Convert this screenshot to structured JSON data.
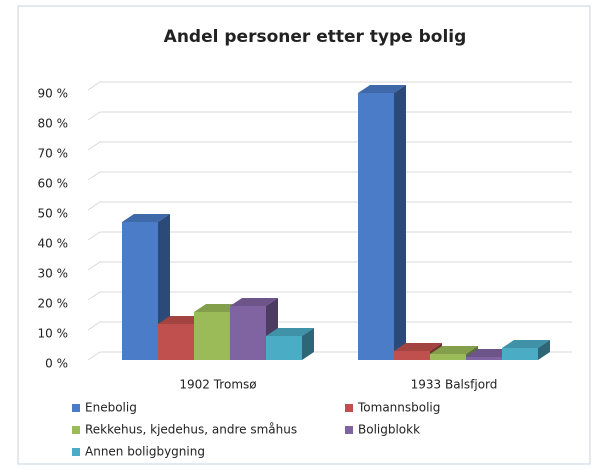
{
  "chart_data": {
    "type": "bar3d",
    "title": "Andel personer etter type bolig",
    "categories": [
      "1902 Tromsø",
      "1933 Balsfjord"
    ],
    "series": [
      {
        "name": "Enebolig",
        "color": "#4a7cc7",
        "values": [
          46,
          89
        ]
      },
      {
        "name": "Tomannsbolig",
        "color": "#c0504d",
        "values": [
          12,
          3
        ]
      },
      {
        "name": "Rekkehus, kjedehus, andre småhus",
        "color": "#9bbb59",
        "values": [
          16,
          2
        ]
      },
      {
        "name": "Boligblokk",
        "color": "#8064a2",
        "values": [
          18,
          1
        ]
      },
      {
        "name": "Annen boligbygning",
        "color": "#4bacc6",
        "values": [
          8,
          4
        ]
      }
    ],
    "ylim": [
      0,
      90
    ],
    "yticks": [
      {
        "value": 0,
        "label": "0 %"
      },
      {
        "value": 10,
        "label": "10 %"
      },
      {
        "value": 20,
        "label": "20 %"
      },
      {
        "value": 30,
        "label": "30 %"
      },
      {
        "value": 40,
        "label": "40 %"
      },
      {
        "value": 50,
        "label": "50 %"
      },
      {
        "value": 60,
        "label": "60 %"
      },
      {
        "value": 70,
        "label": "70 %"
      },
      {
        "value": 80,
        "label": "80 %"
      },
      {
        "value": 90,
        "label": "90 %"
      }
    ],
    "grid": true
  }
}
